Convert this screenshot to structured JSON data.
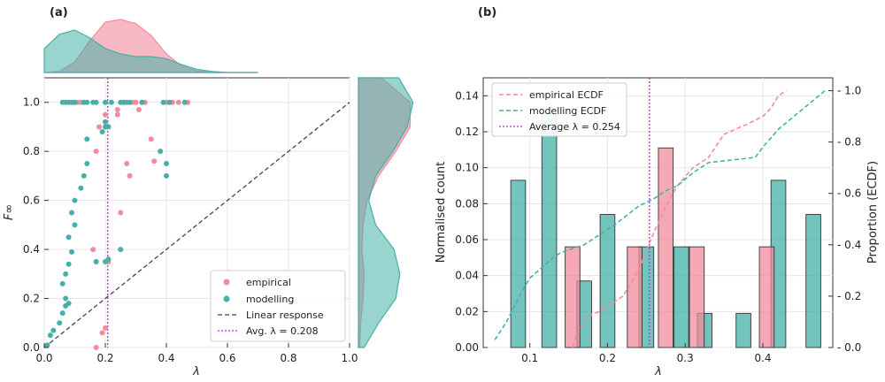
{
  "colors": {
    "empirical": "#f28b9c",
    "modelling": "#45b0a8",
    "linear": "#444444",
    "avg": "#b02ecc"
  },
  "chart_data": [
    {
      "panel": "(a)",
      "type": "scatter",
      "xlabel": "λ",
      "ylabel": "F∞",
      "xlim": [
        0,
        1
      ],
      "ylim": [
        0,
        1.1
      ],
      "xticks": [
        "0.0",
        "0.2",
        "0.4",
        "0.6",
        "0.8",
        "1.0"
      ],
      "yticks": [
        "0.0",
        "0.2",
        "0.4",
        "0.6",
        "0.8",
        "1.0"
      ],
      "grid": true,
      "legend_position": "lower-right",
      "legend": [
        "empirical",
        "modelling",
        "Linear response",
        "Avg. λ = 0.208"
      ],
      "avg_lambda": 0.208,
      "series": [
        {
          "name": "empirical",
          "points": [
            [
              0.17,
              0.0
            ],
            [
              0.19,
              0.06
            ],
            [
              0.2,
              0.08
            ],
            [
              0.16,
              0.4
            ],
            [
              0.17,
              0.8
            ],
            [
              0.18,
              0.9
            ],
            [
              0.2,
              0.95
            ],
            [
              0.21,
              0.35
            ],
            [
              0.25,
              0.55
            ],
            [
              0.27,
              0.75
            ],
            [
              0.28,
              0.7
            ],
            [
              0.24,
              0.95
            ],
            [
              0.24,
              0.97
            ],
            [
              0.31,
              0.97
            ],
            [
              0.35,
              0.85
            ],
            [
              0.36,
              0.76
            ],
            [
              0.26,
              1.0
            ],
            [
              0.29,
              1.0
            ],
            [
              0.3,
              1.0
            ],
            [
              0.33,
              1.0
            ],
            [
              0.4,
              1.0
            ],
            [
              0.42,
              1.0
            ],
            [
              0.44,
              1.0
            ],
            [
              0.47,
              1.0
            ],
            [
              0.11,
              1.0
            ],
            [
              0.12,
              1.0
            ]
          ]
        },
        {
          "name": "modelling",
          "points": [
            [
              0.01,
              0.01
            ],
            [
              0.02,
              0.05
            ],
            [
              0.03,
              0.07
            ],
            [
              0.05,
              0.1
            ],
            [
              0.06,
              0.14
            ],
            [
              0.07,
              0.17
            ],
            [
              0.07,
              0.2
            ],
            [
              0.08,
              0.18
            ],
            [
              0.06,
              0.26
            ],
            [
              0.07,
              0.3
            ],
            [
              0.08,
              0.34
            ],
            [
              0.09,
              0.39
            ],
            [
              0.08,
              0.45
            ],
            [
              0.1,
              0.5
            ],
            [
              0.09,
              0.55
            ],
            [
              0.1,
              0.6
            ],
            [
              0.12,
              0.65
            ],
            [
              0.13,
              0.7
            ],
            [
              0.14,
              0.75
            ],
            [
              0.14,
              0.85
            ],
            [
              0.17,
              0.35
            ],
            [
              0.2,
              0.35
            ],
            [
              0.21,
              0.36
            ],
            [
              0.25,
              0.4
            ],
            [
              0.19,
              0.88
            ],
            [
              0.2,
              0.9
            ],
            [
              0.2,
              0.92
            ],
            [
              0.21,
              0.9
            ],
            [
              0.38,
              0.8
            ],
            [
              0.4,
              0.7
            ],
            [
              0.4,
              0.75
            ],
            [
              0.06,
              1.0
            ],
            [
              0.07,
              1.0
            ],
            [
              0.08,
              1.0
            ],
            [
              0.09,
              1.0
            ],
            [
              0.1,
              1.0
            ],
            [
              0.13,
              1.0
            ],
            [
              0.14,
              1.0
            ],
            [
              0.16,
              1.0
            ],
            [
              0.17,
              1.0
            ],
            [
              0.2,
              1.0
            ],
            [
              0.22,
              1.0
            ],
            [
              0.25,
              1.0
            ],
            [
              0.26,
              1.0
            ],
            [
              0.27,
              1.0
            ],
            [
              0.28,
              1.0
            ],
            [
              0.32,
              1.0
            ],
            [
              0.39,
              1.0
            ],
            [
              0.41,
              1.0
            ],
            [
              0.46,
              1.0
            ]
          ]
        }
      ],
      "linear_response": [
        [
          0,
          0
        ],
        [
          1,
          1
        ]
      ],
      "top_density_x": [
        0.0,
        0.05,
        0.1,
        0.15,
        0.2,
        0.25,
        0.3,
        0.35,
        0.4,
        0.45,
        0.5,
        0.55,
        0.6,
        0.65,
        0.7
      ],
      "top_density_empirical": [
        0.0,
        0.02,
        0.2,
        0.6,
        0.95,
        1.0,
        0.92,
        0.7,
        0.35,
        0.12,
        0.03,
        0.0,
        0.0,
        0.0,
        0.0
      ],
      "top_density_modelling": [
        0.45,
        0.72,
        0.8,
        0.65,
        0.45,
        0.35,
        0.3,
        0.3,
        0.26,
        0.15,
        0.06,
        0.02,
        0.0,
        0.0,
        0.0
      ],
      "right_density_y": [
        0.0,
        0.1,
        0.2,
        0.3,
        0.4,
        0.5,
        0.6,
        0.7,
        0.8,
        0.9,
        1.0,
        1.1
      ],
      "right_density_empirical": [
        0.02,
        0.04,
        0.08,
        0.1,
        0.06,
        0.08,
        0.15,
        0.35,
        0.65,
        0.9,
        0.9,
        0.4
      ],
      "right_density_modelling": [
        0.1,
        0.35,
        0.65,
        0.72,
        0.62,
        0.3,
        0.18,
        0.3,
        0.6,
        0.85,
        0.95,
        0.7
      ]
    },
    {
      "panel": "(b)",
      "type": "bar",
      "xlabel": "λ",
      "ylabel": "Normalised count",
      "ylabel_right": "Proportion (ECDF)",
      "xlim": [
        0.04,
        0.49
      ],
      "ylim": [
        0,
        0.15
      ],
      "ylim_right": [
        0,
        1.05
      ],
      "xticks": [
        "0.1",
        "0.2",
        "0.3",
        "0.4"
      ],
      "yticks": [
        "0.00",
        "0.02",
        "0.04",
        "0.06",
        "0.08",
        "0.10",
        "0.12",
        "0.14"
      ],
      "yticks_right": [
        "0.0",
        "0.2",
        "0.4",
        "0.6",
        "0.8",
        "1.0"
      ],
      "grid": true,
      "legend_position": "top-left",
      "legend": [
        "empirical ECDF",
        "modelling ECDF",
        "Average λ = 0.254"
      ],
      "avg_lambda": 0.254,
      "bar_width": 0.019,
      "bars_modelling": [
        {
          "x": 0.085,
          "value": 0.093
        },
        {
          "x": 0.125,
          "value": 0.13
        },
        {
          "x": 0.17,
          "value": 0.037
        },
        {
          "x": 0.2,
          "value": 0.074
        },
        {
          "x": 0.25,
          "value": 0.056
        },
        {
          "x": 0.295,
          "value": 0.056
        },
        {
          "x": 0.325,
          "value": 0.019
        },
        {
          "x": 0.375,
          "value": 0.019
        },
        {
          "x": 0.42,
          "value": 0.093
        },
        {
          "x": 0.465,
          "value": 0.074
        }
      ],
      "bars_empirical": [
        {
          "x": 0.155,
          "value": 0.056
        },
        {
          "x": 0.235,
          "value": 0.056
        },
        {
          "x": 0.275,
          "value": 0.111
        },
        {
          "x": 0.315,
          "value": 0.056
        },
        {
          "x": 0.405,
          "value": 0.056
        }
      ],
      "ecdf_empirical": [
        [
          0.155,
          0.0
        ],
        [
          0.16,
          0.05
        ],
        [
          0.17,
          0.1
        ],
        [
          0.18,
          0.13
        ],
        [
          0.19,
          0.14
        ],
        [
          0.2,
          0.16
        ],
        [
          0.22,
          0.2
        ],
        [
          0.24,
          0.3
        ],
        [
          0.26,
          0.45
        ],
        [
          0.275,
          0.55
        ],
        [
          0.29,
          0.63
        ],
        [
          0.31,
          0.7
        ],
        [
          0.33,
          0.74
        ],
        [
          0.35,
          0.83
        ],
        [
          0.38,
          0.87
        ],
        [
          0.4,
          0.9
        ],
        [
          0.41,
          0.93
        ],
        [
          0.42,
          0.98
        ],
        [
          0.43,
          1.0
        ]
      ],
      "ecdf_modelling": [
        [
          0.055,
          0.03
        ],
        [
          0.07,
          0.1
        ],
        [
          0.08,
          0.16
        ],
        [
          0.09,
          0.22
        ],
        [
          0.1,
          0.27
        ],
        [
          0.115,
          0.31
        ],
        [
          0.13,
          0.35
        ],
        [
          0.14,
          0.37
        ],
        [
          0.17,
          0.4
        ],
        [
          0.2,
          0.46
        ],
        [
          0.21,
          0.48
        ],
        [
          0.24,
          0.55
        ],
        [
          0.26,
          0.58
        ],
        [
          0.275,
          0.61
        ],
        [
          0.29,
          0.63
        ],
        [
          0.31,
          0.68
        ],
        [
          0.33,
          0.72
        ],
        [
          0.36,
          0.73
        ],
        [
          0.39,
          0.74
        ],
        [
          0.4,
          0.78
        ],
        [
          0.42,
          0.85
        ],
        [
          0.44,
          0.9
        ],
        [
          0.46,
          0.95
        ],
        [
          0.48,
          1.0
        ]
      ]
    }
  ]
}
